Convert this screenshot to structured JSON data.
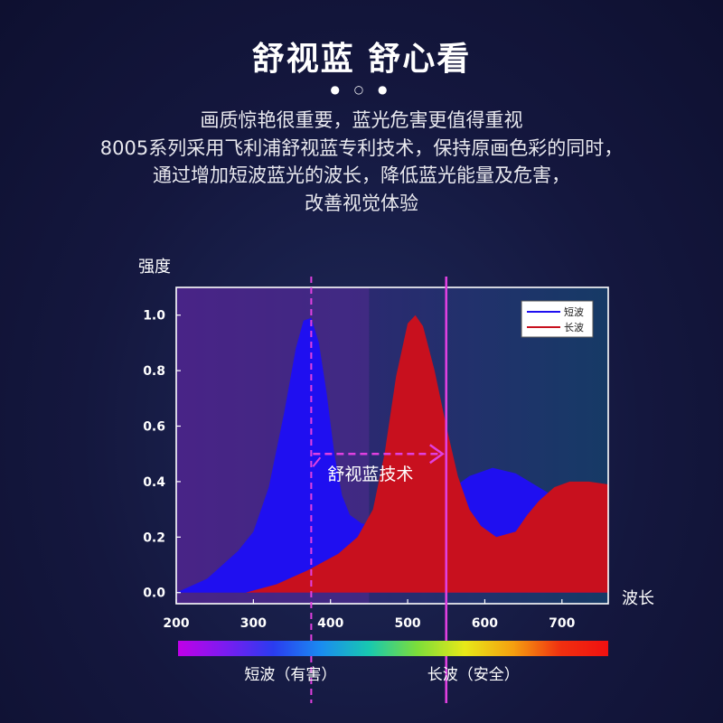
{
  "header": {
    "title": "舒视蓝 舒心看",
    "dots": "● ○ ●",
    "description_lines": [
      "画质惊艳很重要，蓝光危害更值得重视",
      "8005系列采用飞利浦舒视蓝专利技术，保持原画色彩的同时，",
      "通过增加短波蓝光的波长，降低蓝光能量及危害，",
      "改善视觉体验"
    ]
  },
  "chart_data": {
    "type": "area",
    "ylabel": "强度",
    "xlabel": "波长",
    "xlim": [
      200,
      760
    ],
    "ylim": [
      -0.04,
      1.1
    ],
    "x_ticks": [
      200,
      300,
      400,
      500,
      600,
      700
    ],
    "y_ticks": [
      "0.0",
      "0.2",
      "0.4",
      "0.6",
      "0.8",
      "1.0"
    ],
    "grid": false,
    "legend_position": "top-right",
    "colors": {
      "short": "#1f0ff0",
      "long": "#c8101e",
      "marker": "#e040e0"
    },
    "series": [
      {
        "name": "短波",
        "color": "#1f0ff0",
        "points": [
          [
            200,
            0.0
          ],
          [
            240,
            0.05
          ],
          [
            280,
            0.15
          ],
          [
            300,
            0.22
          ],
          [
            320,
            0.38
          ],
          [
            340,
            0.65
          ],
          [
            355,
            0.88
          ],
          [
            365,
            0.98
          ],
          [
            375,
            0.99
          ],
          [
            385,
            0.9
          ],
          [
            395,
            0.72
          ],
          [
            405,
            0.5
          ],
          [
            415,
            0.35
          ],
          [
            425,
            0.28
          ],
          [
            440,
            0.25
          ],
          [
            455,
            0.24
          ],
          [
            470,
            0.25
          ],
          [
            500,
            0.28
          ],
          [
            550,
            0.36
          ],
          [
            580,
            0.42
          ],
          [
            610,
            0.45
          ],
          [
            640,
            0.43
          ],
          [
            670,
            0.38
          ],
          [
            700,
            0.33
          ],
          [
            730,
            0.3
          ],
          [
            760,
            0.28
          ]
        ]
      },
      {
        "name": "长波",
        "color": "#c8101e",
        "points": [
          [
            290,
            0.0
          ],
          [
            330,
            0.03
          ],
          [
            370,
            0.08
          ],
          [
            410,
            0.14
          ],
          [
            435,
            0.2
          ],
          [
            455,
            0.3
          ],
          [
            470,
            0.5
          ],
          [
            485,
            0.78
          ],
          [
            500,
            0.97
          ],
          [
            510,
            1.0
          ],
          [
            520,
            0.96
          ],
          [
            535,
            0.8
          ],
          [
            550,
            0.6
          ],
          [
            565,
            0.42
          ],
          [
            580,
            0.3
          ],
          [
            595,
            0.24
          ],
          [
            615,
            0.2
          ],
          [
            640,
            0.22
          ],
          [
            655,
            0.28
          ],
          [
            670,
            0.33
          ],
          [
            690,
            0.38
          ],
          [
            710,
            0.4
          ],
          [
            735,
            0.4
          ],
          [
            760,
            0.39
          ]
        ]
      }
    ],
    "markers": [
      {
        "x": 375,
        "style": "dashed",
        "label": "短波（有害）"
      },
      {
        "x": 550,
        "style": "solid",
        "label": "长波（安全）"
      }
    ],
    "annotation": {
      "text": "舒视蓝技术",
      "from_x": 375,
      "to_x": 550,
      "y": 0.5
    },
    "spectrum_bar": {
      "colors": [
        "#c000e8",
        "#7a1cf0",
        "#2a3cf0",
        "#1a8cf0",
        "#18c8b0",
        "#7cde3a",
        "#e8e818",
        "#f5a010",
        "#f03010",
        "#f01010"
      ]
    }
  }
}
